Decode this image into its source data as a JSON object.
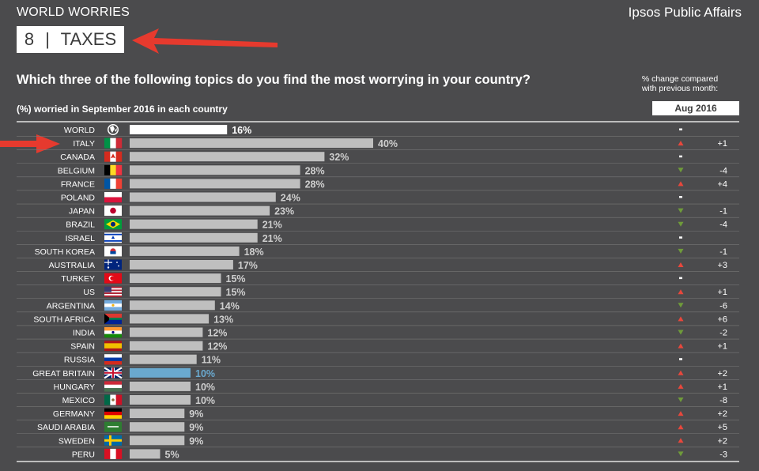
{
  "header": {
    "title": "WORLD WORRIES",
    "brand": "Ipsos Public Affairs"
  },
  "topic": {
    "number": "8",
    "separator": "|",
    "name": "TAXES"
  },
  "question": "Which three of the following topics do you find the most worrying in your country?",
  "subtitle": "(%) worried in September 2016 in each country",
  "change_header": {
    "line1": "% change compared",
    "line2": "with previous month:",
    "month": "Aug 2016"
  },
  "colors": {
    "background": "#4b4b4d",
    "bar_world": "#ffffff",
    "bar_default": "#bfbfbf",
    "bar_highlight": "#6aa9cf",
    "up": "#e8473c",
    "down": "#6f9b3a",
    "arrow": "#e63a2e"
  },
  "chart_data": {
    "type": "bar",
    "orientation": "horizontal",
    "categories": [
      "WORLD",
      "ITALY",
      "CANADA",
      "BELGIUM",
      "FRANCE",
      "POLAND",
      "JAPAN",
      "BRAZIL",
      "ISRAEL",
      "SOUTH KOREA",
      "AUSTRALIA",
      "TURKEY",
      "US",
      "ARGENTINA",
      "SOUTH AFRICA",
      "INDIA",
      "SPAIN",
      "RUSSIA",
      "GREAT BRITAIN",
      "HUNGARY",
      "MEXICO",
      "GERMANY",
      "SAUDI ARABIA",
      "SWEDEN",
      "PERU"
    ],
    "values": [
      16,
      40,
      32,
      28,
      28,
      24,
      23,
      21,
      21,
      18,
      17,
      15,
      15,
      14,
      13,
      12,
      12,
      11,
      10,
      10,
      10,
      9,
      9,
      9,
      5
    ],
    "value_labels": [
      "16%",
      "40%",
      "32%",
      "28%",
      "28%",
      "24%",
      "23%",
      "21%",
      "21%",
      "18%",
      "17%",
      "15%",
      "15%",
      "14%",
      "13%",
      "12%",
      "12%",
      "11%",
      "10%",
      "10%",
      "10%",
      "9%",
      "9%",
      "9%",
      "5%"
    ],
    "change_direction": [
      "same",
      "up",
      "same",
      "down",
      "up",
      "same",
      "down",
      "down",
      "same",
      "down",
      "up",
      "same",
      "up",
      "down",
      "up",
      "down",
      "up",
      "same",
      "up",
      "up",
      "down",
      "up",
      "up",
      "up",
      "down"
    ],
    "change_values": [
      "",
      "+1",
      "",
      "-4",
      "+4",
      "",
      "-1",
      "-4",
      "",
      "-1",
      "+3",
      "",
      "+1",
      "-6",
      "+6",
      "-2",
      "+1",
      "",
      "+2",
      "+1",
      "-8",
      "+2",
      "+5",
      "+2",
      "-3"
    ],
    "highlight": [
      "WORLD",
      "GREAT BRITAIN"
    ],
    "flags": [
      "globe",
      "italy",
      "canada",
      "belgium",
      "france",
      "poland",
      "japan",
      "brazil",
      "israel",
      "south-korea",
      "australia",
      "turkey",
      "us",
      "argentina",
      "south-africa",
      "india",
      "spain",
      "russia",
      "great-britain",
      "hungary",
      "mexico",
      "germany",
      "saudi-arabia",
      "sweden",
      "peru"
    ],
    "xlim": [
      0,
      40
    ],
    "grid": false
  }
}
